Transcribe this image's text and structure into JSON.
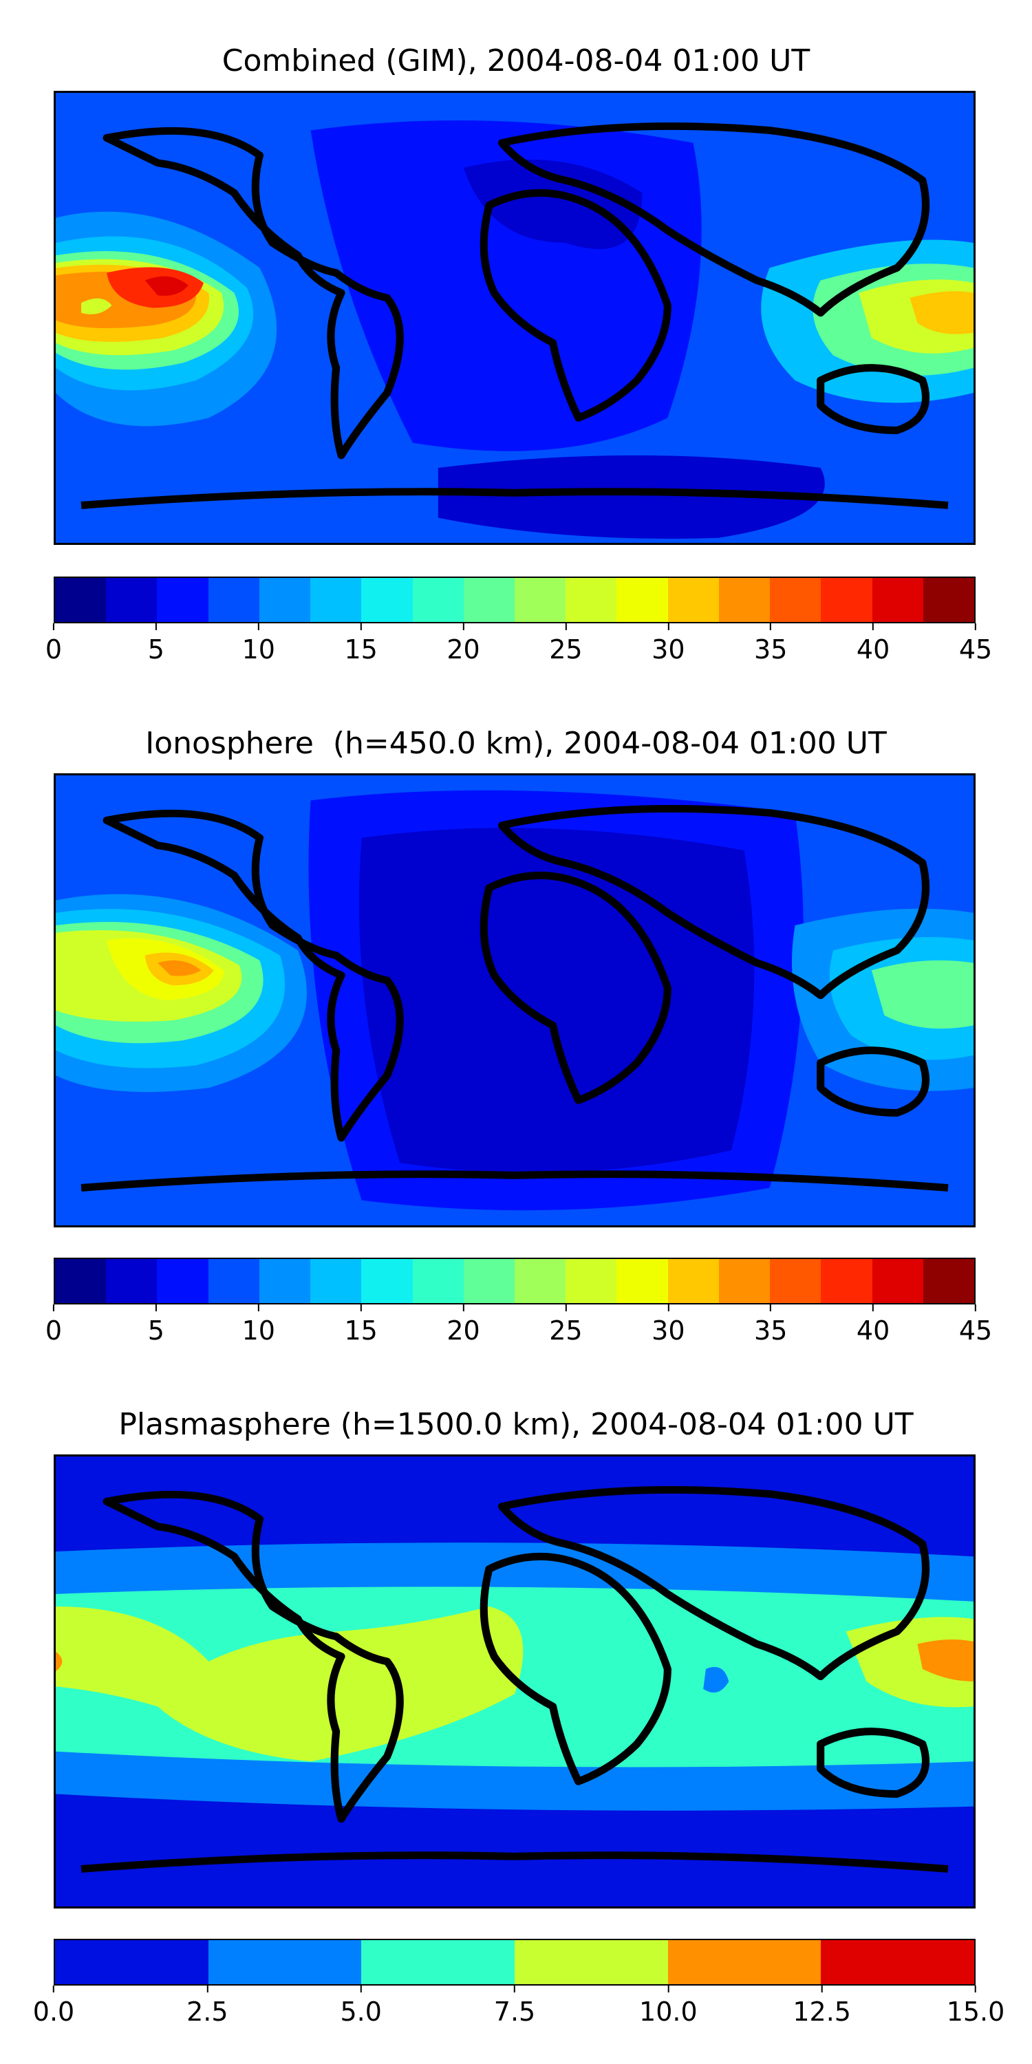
{
  "panels": [
    {
      "title": "Combined (GIM), 2004-08-04 01:00 UT",
      "colorbar": {
        "colors": [
          "#00008f",
          "#0000cf",
          "#0010ff",
          "#0050ff",
          "#0090ff",
          "#00c0ff",
          "#10f0f0",
          "#30ffc8",
          "#60ff98",
          "#a0ff58",
          "#d0ff28",
          "#f0ff00",
          "#ffc800",
          "#ff9000",
          "#ff5800",
          "#ff2800",
          "#df0000",
          "#8f0000"
        ],
        "ticks": [
          "0",
          "5",
          "10",
          "15",
          "20",
          "25",
          "30",
          "35",
          "40",
          "45"
        ],
        "min": 0,
        "max": 45
      }
    },
    {
      "title": "Ionosphere  (h=450.0 km), 2004-08-04 01:00 UT",
      "colorbar": {
        "colors": [
          "#00008f",
          "#0000cf",
          "#0010ff",
          "#0050ff",
          "#0090ff",
          "#00c0ff",
          "#10f0f0",
          "#30ffc8",
          "#60ff98",
          "#a0ff58",
          "#d0ff28",
          "#f0ff00",
          "#ffc800",
          "#ff9000",
          "#ff5800",
          "#ff2800",
          "#df0000",
          "#8f0000"
        ],
        "ticks": [
          "0",
          "5",
          "10",
          "15",
          "20",
          "25",
          "30",
          "35",
          "40",
          "45"
        ],
        "min": 0,
        "max": 45
      }
    },
    {
      "title": "Plasmasphere (h=1500.0 km), 2004-08-04 01:00 UT",
      "colorbar": {
        "colors": [
          "#0010e0",
          "#0080ff",
          "#30ffc8",
          "#c8ff30",
          "#ff9000",
          "#df0000"
        ],
        "ticks": [
          "0.0",
          "2.5",
          "5.0",
          "7.5",
          "10.0",
          "12.5",
          "15.0"
        ],
        "min": 0,
        "max": 15
      }
    }
  ]
}
